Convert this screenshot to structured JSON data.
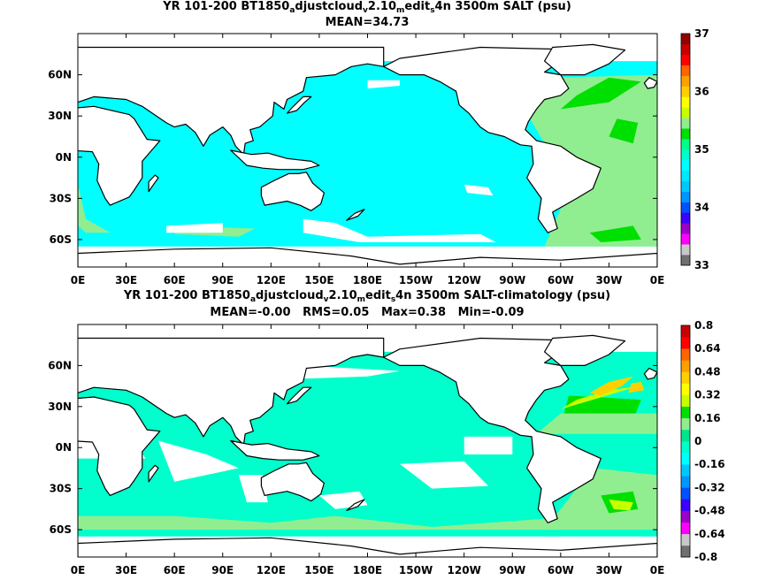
{
  "panels": [
    {
      "title_parts": [
        "YR 101-200 BT1850",
        "a",
        "djustcloud",
        "v",
        "2.10",
        "m",
        "edit",
        "s",
        "4n 3500m SALT (psu)"
      ],
      "subtitle": "MEAN=34.73"
    },
    {
      "title_parts": [
        "YR 101-200 BT1850",
        "a",
        "djustcloud",
        "v",
        "2.10",
        "m",
        "edit",
        "s",
        "4n 3500m SALT-climatology (psu)"
      ],
      "subtitle": "MEAN=-0.00   RMS=0.05   Max=0.38   Min=-0.09"
    }
  ],
  "chart_data": [
    {
      "type": "heatmap",
      "title": "YR 101-200 BT1850adjustcloudv2.10meditsn4n 3500m SALT (psu)",
      "subtitle": "MEAN=34.73",
      "xlabel": "",
      "ylabel": "",
      "x_tick_labels": [
        "0E",
        "30E",
        "60E",
        "90E",
        "120E",
        "150E",
        "180E",
        "150W",
        "120W",
        "90W",
        "60W",
        "30W",
        "0E"
      ],
      "y_tick_labels": [
        "60N",
        "30N",
        "0N",
        "30S",
        "60S"
      ],
      "xlim": [
        0,
        360
      ],
      "ylim": [
        -80,
        90
      ],
      "colorbar": {
        "min": 33,
        "max": 37,
        "tick_labels": [
          "33",
          "34",
          "35",
          "36",
          "37"
        ],
        "colors": [
          "#707070",
          "#c8c8c8",
          "#ff00ff",
          "#9b00c8",
          "#3c00ff",
          "#0050ff",
          "#0096ff",
          "#00c8ff",
          "#00e6ff",
          "#00ffff",
          "#00ffcc",
          "#00ff88",
          "#00e000",
          "#90ee90",
          "#c8ff00",
          "#ffff00",
          "#ffd000",
          "#ffa000",
          "#ff6400",
          "#ff0000",
          "#c80000",
          "#960000"
        ]
      },
      "dominant_values": {
        "Pacific": "34.7 (cyan)",
        "Indian": "34.7 (cyan)",
        "Southern Ocean": "34.7 (cyan)",
        "Atlantic": "34.9 (light green)",
        "North Atlantic": "35.0 (green)"
      },
      "mean": 34.73
    },
    {
      "type": "heatmap",
      "title": "YR 101-200 BT1850adjustcloudv2.10meditsn4n 3500m SALT-climatology (psu)",
      "subtitle": "MEAN=-0.00   RMS=0.05   Max=0.38   Min=-0.09",
      "xlabel": "",
      "ylabel": "",
      "x_tick_labels": [
        "0E",
        "30E",
        "60E",
        "90E",
        "120E",
        "150E",
        "180E",
        "150W",
        "120W",
        "90W",
        "60W",
        "30W",
        "0E"
      ],
      "y_tick_labels": [
        "60N",
        "30N",
        "0N",
        "30S",
        "60S"
      ],
      "xlim": [
        0,
        360
      ],
      "ylim": [
        -80,
        90
      ],
      "colorbar": {
        "min": -0.8,
        "max": 0.8,
        "tick_labels": [
          "-0.8",
          "-0.64",
          "-0.48",
          "-0.32",
          "-0.16",
          "0",
          "0.16",
          "0.32",
          "0.48",
          "0.64",
          "0.8"
        ],
        "colors": [
          "#707070",
          "#c8c8c8",
          "#ff00ff",
          "#9b00c8",
          "#3c00ff",
          "#0050ff",
          "#0096ff",
          "#00c8ff",
          "#00ffff",
          "#00ffcc",
          "#00e68c",
          "#90ee90",
          "#00e000",
          "#c8ff00",
          "#ffff00",
          "#ffd000",
          "#ffa000",
          "#ff6400",
          "#ff0000",
          "#c80000"
        ]
      },
      "stats": {
        "mean": -0.0,
        "rms": 0.05,
        "max": 0.38,
        "min": -0.09
      }
    }
  ]
}
